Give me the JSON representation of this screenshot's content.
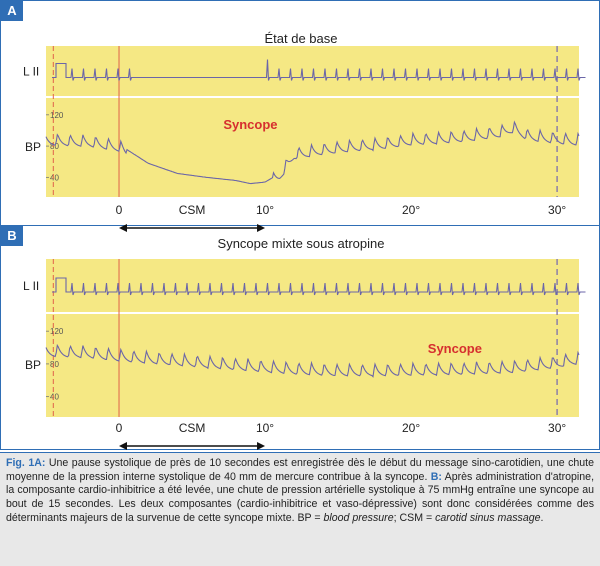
{
  "chart_data": [
    {
      "type": "line",
      "panel_label": "A",
      "title": "État de base",
      "x_ticks": [
        "0",
        "10°",
        "20°",
        "30°"
      ],
      "x_tick_values": [
        0,
        10,
        20,
        30
      ],
      "xlim": [
        -5,
        31.5
      ],
      "csm_label": "CSM",
      "csm_range": [
        0,
        10
      ],
      "ecg_label": "L II",
      "bp_label": "BP",
      "bp_yticks": [
        120,
        80,
        40
      ],
      "ylim": [
        20,
        130
      ],
      "syncope_label": "Syncope",
      "series": [
        {
          "name": "BP",
          "x": [
            -5,
            -2,
            0,
            2,
            4,
            6,
            8,
            9,
            10,
            11,
            12,
            14,
            16,
            18,
            20,
            22,
            24,
            26,
            27,
            28,
            30,
            31
          ],
          "y": [
            90,
            88,
            82,
            58,
            45,
            40,
            36,
            32,
            34,
            45,
            72,
            78,
            82,
            85,
            90,
            92,
            95,
            100,
            106,
            96,
            92,
            90
          ]
        }
      ]
    },
    {
      "type": "line",
      "panel_label": "B",
      "title": "Syncope mixte sous atropine",
      "x_ticks": [
        "0",
        "10°",
        "20°",
        "30°"
      ],
      "x_tick_values": [
        0,
        10,
        20,
        30
      ],
      "xlim": [
        -5,
        31.5
      ],
      "csm_label": "CSM",
      "csm_range": [
        0,
        10
      ],
      "ecg_label": "L II",
      "bp_label": "BP",
      "bp_yticks": [
        120,
        80,
        40
      ],
      "ylim": [
        20,
        130
      ],
      "syncope_label": "Syncope",
      "series": [
        {
          "name": "BP",
          "x": [
            -5,
            -2,
            0,
            3,
            6,
            9,
            12,
            15,
            18,
            21,
            24,
            27,
            30,
            31
          ],
          "y": [
            98,
            96,
            92,
            88,
            84,
            80,
            76,
            74,
            74,
            75,
            76,
            78,
            84,
            88
          ]
        }
      ]
    }
  ],
  "caption": {
    "fig_label": "Fig. 1A:",
    "text_a": "Une pause systolique de près de 10 secondes est enregistrée dès le début du message sino-carotidien, une chute moyenne de la pression interne systolique de 40 mm de mercure contribue à la syncope.",
    "b_label": "B:",
    "text_b": "Après administration d'atropine, la composante cardio-inhibitrice a été levée, une chute de pression artérielle systolique à 75 mmHg entraîne une syncope au bout de 15 secondes. Les deux composantes (cardio-inhibitrice et vaso-dépressive) sont donc considérées comme des déterminants majeurs de la survenue de cette syncope mixte. BP = ",
    "bp_term": "blood pressure",
    "sep": "; CSM = ",
    "csm_term": "carotid sinus massage",
    "end": "."
  },
  "colors": {
    "panel": "#f5e884",
    "trace": "#6b66a8",
    "marker_red": "#e0624a",
    "marker_grey": "#8c7fa8",
    "syncope": "#d62f2f",
    "accent": "#2f6eb5"
  }
}
